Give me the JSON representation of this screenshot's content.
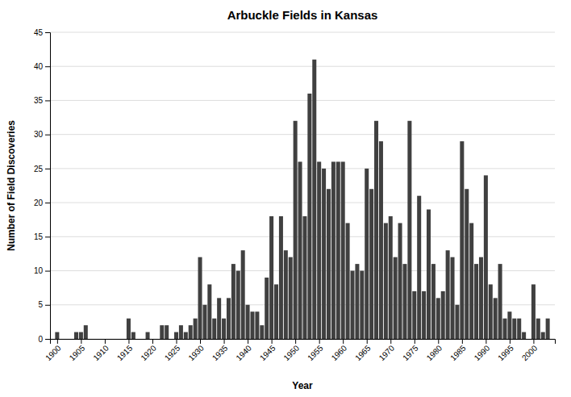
{
  "chart_data": {
    "type": "bar",
    "title": "Arbuckle Fields in Kansas",
    "xlabel": "Year",
    "ylabel": "Number of Field Discoveries",
    "x": [
      1900,
      1901,
      1902,
      1903,
      1904,
      1905,
      1906,
      1907,
      1908,
      1909,
      1910,
      1911,
      1912,
      1913,
      1914,
      1915,
      1916,
      1917,
      1918,
      1919,
      1920,
      1921,
      1922,
      1923,
      1924,
      1925,
      1926,
      1927,
      1928,
      1929,
      1930,
      1931,
      1932,
      1933,
      1934,
      1935,
      1936,
      1937,
      1938,
      1939,
      1940,
      1941,
      1942,
      1943,
      1944,
      1945,
      1946,
      1947,
      1948,
      1949,
      1950,
      1951,
      1952,
      1953,
      1954,
      1955,
      1956,
      1957,
      1958,
      1959,
      1960,
      1961,
      1962,
      1963,
      1964,
      1965,
      1966,
      1967,
      1968,
      1969,
      1970,
      1971,
      1972,
      1973,
      1974,
      1975,
      1976,
      1977,
      1978,
      1979,
      1980,
      1981,
      1982,
      1983,
      1984,
      1985,
      1986,
      1987,
      1988,
      1989,
      1990,
      1991,
      1992,
      1993,
      1994,
      1995,
      1996,
      1997,
      1998,
      1999,
      2000,
      2001,
      2002,
      2003
    ],
    "values": [
      1,
      0,
      0,
      0,
      1,
      1,
      2,
      0,
      0,
      0,
      0,
      0,
      0,
      0,
      0,
      3,
      1,
      0,
      0,
      1,
      0,
      0,
      2,
      2,
      0,
      1,
      2,
      1,
      2,
      3,
      12,
      5,
      8,
      3,
      6,
      3,
      6,
      11,
      10,
      13,
      5,
      4,
      4,
      2,
      9,
      18,
      8,
      18,
      13,
      12,
      32,
      26,
      18,
      36,
      41,
      26,
      25,
      22,
      26,
      26,
      26,
      17,
      10,
      11,
      10,
      25,
      22,
      32,
      29,
      17,
      18,
      12,
      17,
      11,
      32,
      7,
      21,
      7,
      19,
      11,
      6,
      7,
      13,
      12,
      5,
      29,
      22,
      17,
      11,
      12,
      24,
      8,
      6,
      11,
      3,
      4,
      3,
      3,
      1,
      0,
      8,
      3,
      1,
      3
    ],
    "color": "#404040",
    "xlim": [
      1898.5,
      2004.5
    ],
    "xticks": [
      1900,
      1905,
      1910,
      1915,
      1920,
      1925,
      1930,
      1935,
      1940,
      1945,
      1950,
      1955,
      1960,
      1965,
      1970,
      1975,
      1980,
      1985,
      1990,
      1995,
      2000
    ],
    "ylim": [
      0,
      45
    ],
    "yticks": [
      0,
      5,
      10,
      15,
      20,
      25,
      30,
      35,
      40,
      45
    ],
    "grid": true
  }
}
